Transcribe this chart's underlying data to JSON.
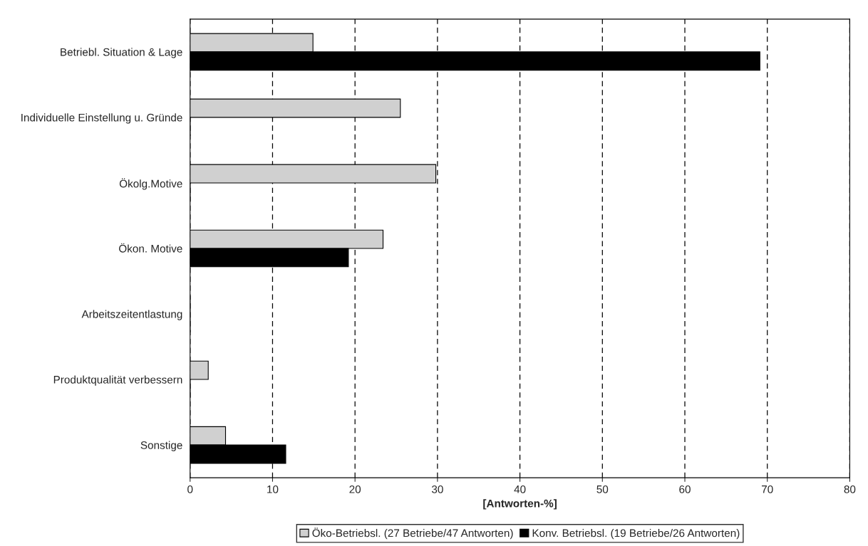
{
  "chart_data": {
    "type": "bar",
    "orientation": "horizontal",
    "xlabel": "[Antworten-%]",
    "categories": [
      "Betriebl. Situation & Lage",
      "Individuelle Einstellung u. Gründe",
      "Ökolg.Motive",
      "Ökon. Motive",
      "Arbeitszeitentlastung",
      "Produktqualität verbessern",
      "Sonstige"
    ],
    "series": [
      {
        "name": "Öko-Betriebsl. (27 Betriebe/47 Antworten)",
        "color": "#d0d0d0",
        "values": [
          14.9,
          25.5,
          29.8,
          23.4,
          0,
          2.2,
          4.3
        ]
      },
      {
        "name": "Konv. Betriebsl. (19 Betriebe/26 Antworten)",
        "color": "#000000",
        "values": [
          69.1,
          0,
          0,
          19.2,
          0,
          0,
          11.6
        ]
      }
    ],
    "xlim": [
      0,
      80
    ],
    "xticks": [
      0,
      10,
      20,
      30,
      40,
      50,
      60,
      70,
      80
    ],
    "grid": "x",
    "legend": "bottom"
  }
}
